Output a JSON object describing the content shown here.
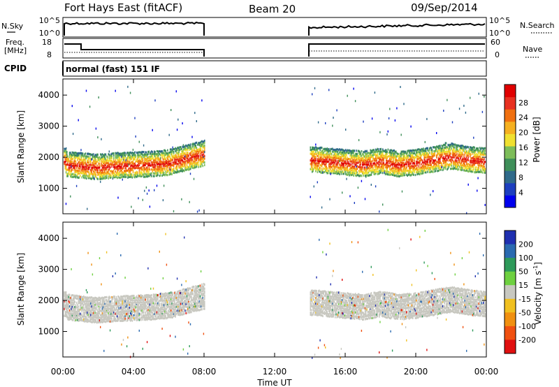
{
  "header": {
    "site": "Fort Hays East (fitACF)",
    "beam": "Beam 20",
    "date": "09/Sep/2014"
  },
  "panels": {
    "nsky_label": "N.Sky",
    "nsearch_label": "N.Search",
    "freq_label_line1": "Freq.",
    "freq_label_line2": "[MHz]",
    "nave_label": "Nave",
    "cpid_label": "CPID",
    "cpid_value": "normal (fast) 151 IF",
    "noise_ticks": [
      "10^5",
      "10^0"
    ],
    "freq_ticks_left": [
      "18",
      "8"
    ],
    "freq_ticks_right": [
      "60",
      "0"
    ]
  },
  "colors": {
    "power_scale": [
      "#0000ee",
      "#1d3fbf",
      "#2f6a8a",
      "#3f8f5a",
      "#7dbd5a",
      "#f0e030",
      "#f5b020",
      "#f07010",
      "#e83020",
      "#e00000"
    ],
    "velocity_scale": [
      "#1f2fb0",
      "#2a6ab0",
      "#2e9a5a",
      "#6ed040",
      "#c8c8c0",
      "#f0c020",
      "#f09010",
      "#f05010",
      "#e01010"
    ]
  },
  "chart_data": [
    {
      "type": "heatmap",
      "name": "power",
      "ylabel": "Slant Range [km]",
      "xlabel": "Time UT",
      "x_ticks": [
        "00:00",
        "04:00",
        "08:00",
        "12:00",
        "16:00",
        "20:00",
        "00:00"
      ],
      "x_hours": [
        0,
        4,
        8,
        12,
        16,
        20,
        24
      ],
      "ylim": [
        180,
        4520
      ],
      "y_ticks": [
        1000,
        2000,
        3000,
        4000
      ],
      "colorbar_label": "Power [dB]",
      "colorbar_ticks": [
        "4",
        "8",
        "12",
        "16",
        "20",
        "24",
        "28"
      ],
      "data_gaps_hours": [
        [
          8.0,
          14.0
        ]
      ],
      "main_band_km": [
        [
          0.2,
          1750
        ],
        [
          1.0,
          1700
        ],
        [
          2.0,
          1650
        ],
        [
          3.0,
          1700
        ],
        [
          4.0,
          1720
        ],
        [
          5.0,
          1750
        ],
        [
          6.0,
          1800
        ],
        [
          7.0,
          1950
        ],
        [
          8.0,
          2100
        ],
        [
          14.0,
          1900
        ],
        [
          15.0,
          1850
        ],
        [
          16.0,
          1800
        ],
        [
          17.0,
          1750
        ],
        [
          18.0,
          1850
        ],
        [
          19.0,
          1750
        ],
        [
          20.0,
          1800
        ],
        [
          21.0,
          1900
        ],
        [
          22.0,
          2000
        ],
        [
          23.0,
          1900
        ],
        [
          24.0,
          1850
        ]
      ]
    },
    {
      "type": "heatmap",
      "name": "velocity",
      "ylabel": "Slant Range [km]",
      "xlabel": "Time UT",
      "x_ticks": [
        "00:00",
        "04:00",
        "08:00",
        "12:00",
        "16:00",
        "20:00",
        "00:00"
      ],
      "x_hours": [
        0,
        4,
        8,
        12,
        16,
        20,
        24
      ],
      "ylim": [
        180,
        4520
      ],
      "y_ticks": [
        1000,
        2000,
        3000,
        4000
      ],
      "colorbar_label": "Velocity [m s^-1]",
      "colorbar_ticks": [
        "200",
        "100",
        "50",
        "15",
        "-15",
        "-50",
        "-100",
        "-200"
      ],
      "data_gaps_hours": [
        [
          8.0,
          14.0
        ]
      ]
    }
  ]
}
